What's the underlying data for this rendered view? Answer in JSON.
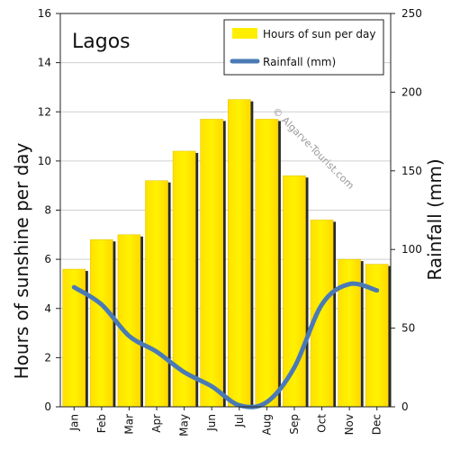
{
  "chart_data": {
    "type": "bar",
    "title": "Lagos",
    "watermark": "© Algarve-Tourist.com",
    "categories": [
      "Jan",
      "Feb",
      "Mar",
      "Apr",
      "May",
      "Jun",
      "Jul",
      "Aug",
      "Sep",
      "Oct",
      "Nov",
      "Dec"
    ],
    "series": [
      {
        "name": "Hours of sun per day",
        "type": "bar",
        "axis": "left",
        "color": "#ffee00",
        "values": [
          5.6,
          6.8,
          7.0,
          9.2,
          10.4,
          11.7,
          12.5,
          11.7,
          9.4,
          7.6,
          6.0,
          5.8
        ]
      },
      {
        "name": "Rainfall (mm)",
        "type": "line",
        "axis": "right",
        "color": "#4a7ab5",
        "values": [
          76,
          65,
          45,
          35,
          22,
          13,
          1,
          3,
          25,
          65,
          78,
          74
        ]
      }
    ],
    "ylabel": "Hours of sunshine per day",
    "y2label": "Rainfall (mm)",
    "ylim": [
      0,
      16
    ],
    "y2lim": [
      0,
      250
    ],
    "yticks": [
      "0",
      "2",
      "4",
      "6",
      "8",
      "10",
      "12",
      "14",
      "16"
    ],
    "y2ticks": [
      "0",
      "50",
      "100",
      "150",
      "200",
      "250"
    ],
    "grid": true,
    "legend": "top-right"
  }
}
